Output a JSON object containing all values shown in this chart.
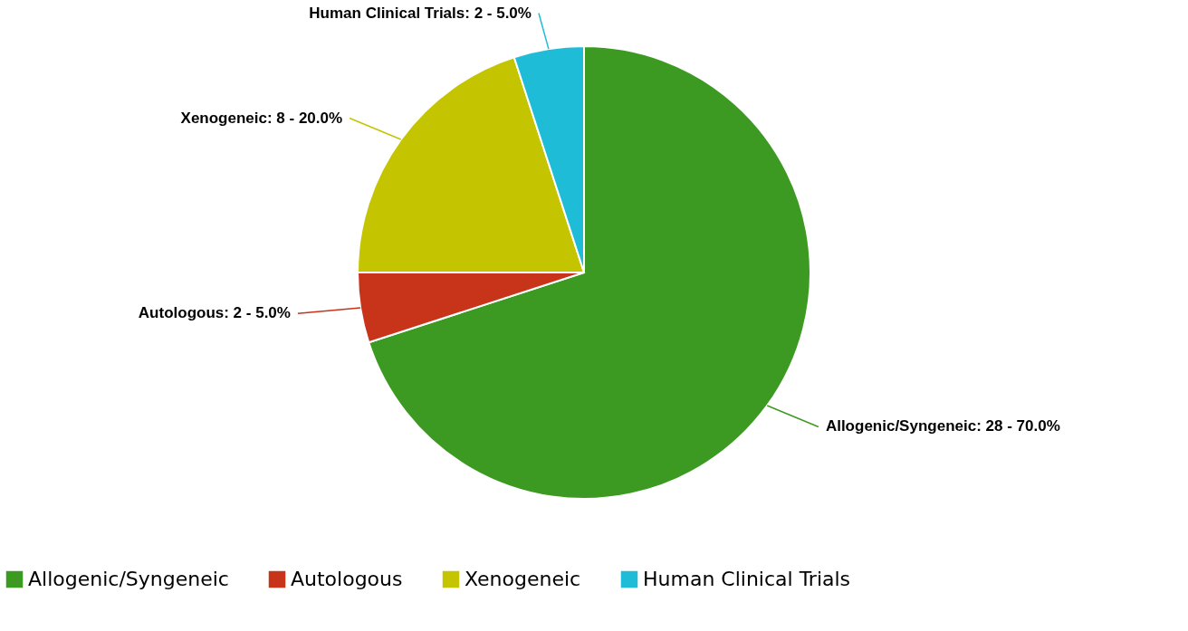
{
  "chart_data": {
    "type": "pie",
    "categories": [
      "Allogenic/Syngeneic",
      "Autologous",
      "Xenogeneic",
      "Human Clinical Trials"
    ],
    "values": [
      28,
      2,
      8,
      2
    ],
    "colors": [
      "#3c9a22",
      "#c8341a",
      "#c4c400",
      "#1fbcd8"
    ],
    "value_labels": [
      ": 28 - 70.0%",
      ": 2 - 5.0%",
      ": 8 - 20.0%",
      ": 2 - 5.0%"
    ],
    "legend": "bottom"
  }
}
